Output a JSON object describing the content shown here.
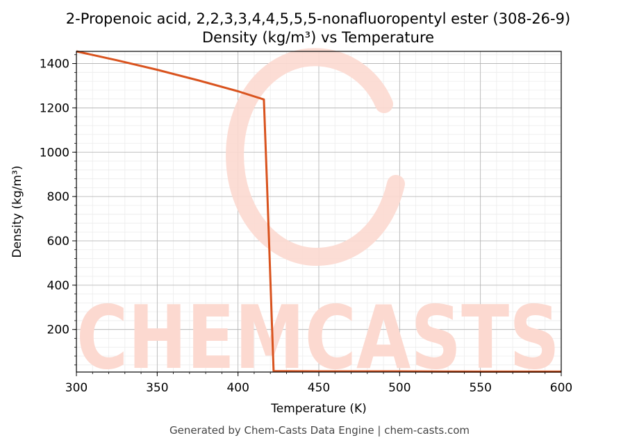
{
  "chart_data": {
    "type": "line",
    "title": "2-Propenoic acid, 2,2,3,3,4,4,5,5,5-nonafluoropentyl ester (308-26-9)",
    "subtitle": "Density (kg/m³) vs Temperature",
    "xlabel": "Temperature (K)",
    "ylabel": "Density (kg/m³)",
    "xlim": [
      300,
      600
    ],
    "ylim": [
      8,
      1455
    ],
    "xticks": [
      300,
      350,
      400,
      450,
      500,
      550,
      600
    ],
    "yticks": [
      200,
      400,
      600,
      800,
      1000,
      1200,
      1400
    ],
    "grid": true,
    "series": [
      {
        "color": "#d9531e",
        "x": [
          300,
          325,
          350,
          375,
          400,
          416,
          418,
          422,
          430,
          450,
          500,
          550,
          600
        ],
        "y": [
          1455,
          1415,
          1372,
          1325,
          1275,
          1238,
          850,
          12,
          12,
          11,
          11,
          10,
          10
        ]
      }
    ],
    "watermark": "CHEMCASTS",
    "watermark_color": "#fcd9d0"
  },
  "footer": "Generated by Chem-Casts Data Engine | chem-casts.com"
}
